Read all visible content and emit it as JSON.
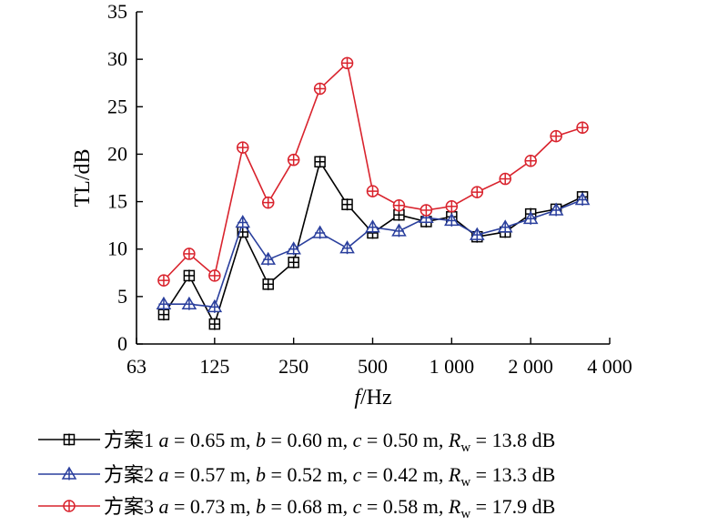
{
  "chart_data": {
    "type": "line",
    "x": [
      80,
      100,
      125,
      160,
      200,
      250,
      315,
      400,
      500,
      630,
      800,
      1000,
      1250,
      1600,
      2000,
      2500,
      3150
    ],
    "x_scale": "log2",
    "xlim": [
      63,
      4000
    ],
    "x_ticks": [
      63,
      125,
      250,
      500,
      1000,
      2000,
      4000
    ],
    "x_tick_labels": [
      "63",
      "125",
      "250",
      "500",
      "1 000",
      "2 000",
      "4 000"
    ],
    "xlabel_italic": "f",
    "xlabel_rest": "/Hz",
    "ylabel": "TL/dB",
    "ylim": [
      0,
      35
    ],
    "y_ticks": [
      0,
      5,
      10,
      15,
      20,
      25,
      30,
      35
    ],
    "grid": false,
    "legend_position": "bottom",
    "series": [
      {
        "name": "方案1",
        "marker": "square-plus",
        "color": "#000000",
        "values": [
          3.1,
          7.2,
          2.1,
          11.8,
          6.3,
          8.6,
          19.2,
          14.7,
          11.7,
          13.6,
          12.9,
          13.4,
          11.3,
          11.8,
          13.7,
          14.2,
          15.5
        ],
        "legend": {
          "a": "0.65 m",
          "b": "0.60 m",
          "c": "0.50 m",
          "Rw": "13.8 dB"
        }
      },
      {
        "name": "方案2",
        "marker": "triangle-plus",
        "color": "#2a3f9d",
        "values": [
          4.2,
          4.2,
          3.9,
          12.8,
          8.9,
          10.0,
          11.7,
          10.1,
          12.3,
          11.9,
          13.3,
          13.0,
          11.5,
          12.3,
          13.2,
          14.1,
          15.2
        ],
        "legend": {
          "a": "0.57 m",
          "b": "0.52 m",
          "c": "0.42 m",
          "Rw": "13.3 dB"
        }
      },
      {
        "name": "方案3",
        "marker": "circle-plus",
        "color": "#d9232d",
        "values": [
          6.7,
          9.5,
          7.2,
          20.7,
          14.9,
          19.4,
          26.9,
          29.6,
          16.1,
          14.6,
          14.1,
          14.5,
          16.0,
          17.4,
          19.3,
          21.9,
          22.8
        ],
        "legend": {
          "a": "0.73 m",
          "b": "0.68 m",
          "c": "0.58 m",
          "Rw": "17.9 dB"
        }
      }
    ]
  }
}
